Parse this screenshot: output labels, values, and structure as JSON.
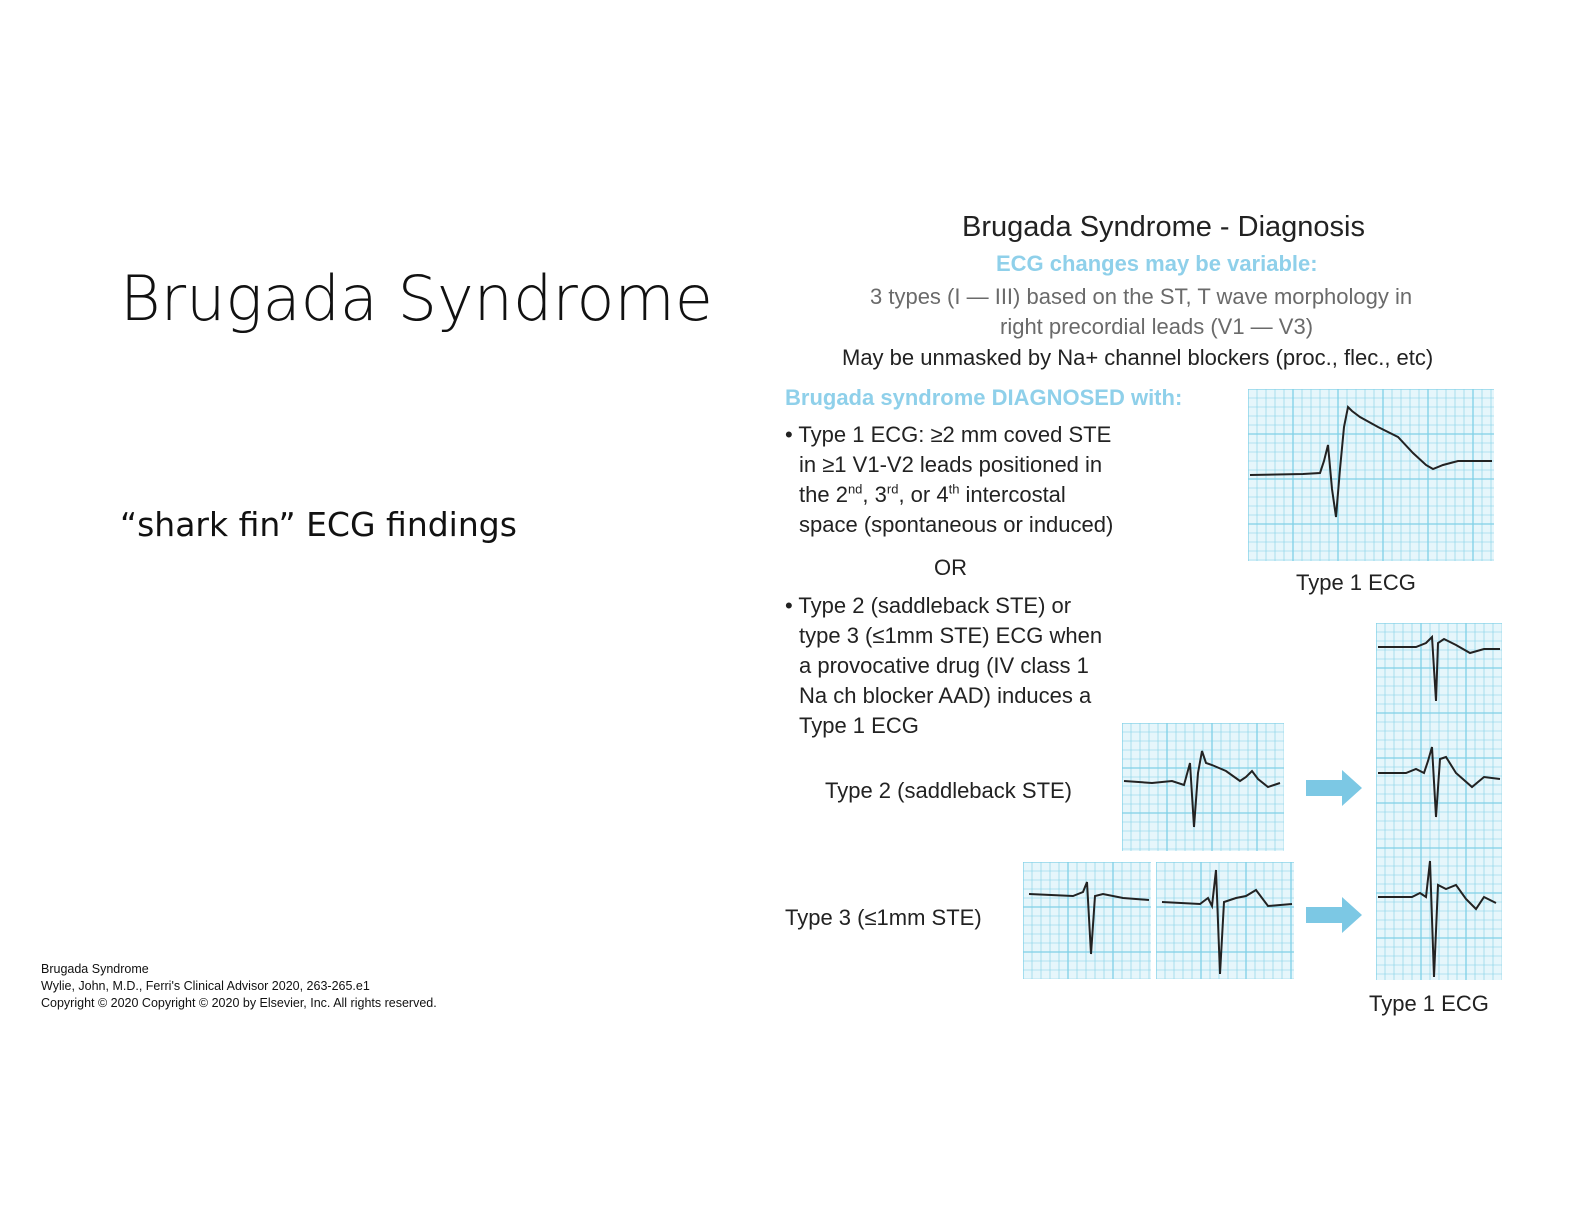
{
  "slide": {
    "title": "Brugada Syndrome",
    "subtitle": "“shark fin” ECG findings"
  },
  "citation": {
    "line1": "Brugada Syndrome",
    "line2": "Wylie, John, M.D., Ferri's Clinical Advisor 2020, 263-265.e1",
    "line3": "Copyright ©  2020   Copyright © 2020 by Elsevier, Inc. All rights reserved."
  },
  "figure": {
    "title": "Brugada Syndrome - Diagnosis",
    "variable_note": "ECG changes may be variable:",
    "types_line1": "3 types (I — III) based on the ST, T wave morphology in",
    "types_line2": "right precordial leads (V1 — V3)",
    "unmask_line": "May be unmasked by Na+ channel blockers (proc., flec., etc)",
    "diagnosed_heading": "Brugada syndrome DIAGNOSED with:",
    "bullet1": {
      "line1": "• Type 1 ECG: ≥2 mm coved STE",
      "line2": "in ≥1 V1-V2 leads positioned in",
      "line3_a": "the 2",
      "line3_sup1": "nd",
      "line3_b": ", 3",
      "line3_sup2": "rd",
      "line3_c": ", or 4",
      "line3_sup3": "th",
      "line3_d": " intercostal",
      "line4": "space (spontaneous or induced)"
    },
    "or_label": "OR",
    "bullet2": {
      "line1": "• Type 2 (saddleback STE) or",
      "line2": "type 3 (≤1mm STE) ECG when",
      "line3": "a provocative drug (IV class 1",
      "line4": "Na ch blocker AAD) induces a",
      "line5": "Type 1 ECG"
    },
    "type1_caption": "Type 1 ECG",
    "type2_label": "Type 2 (saddleback STE)",
    "type3_label": "Type 3 (≤1mm STE)",
    "type1_result_caption": "Type 1 ECG",
    "colors": {
      "grid": "#7fd0e6",
      "grid_bg": "#e6f6fb",
      "arrow": "#7cc8e4",
      "trace": "#222222"
    }
  }
}
